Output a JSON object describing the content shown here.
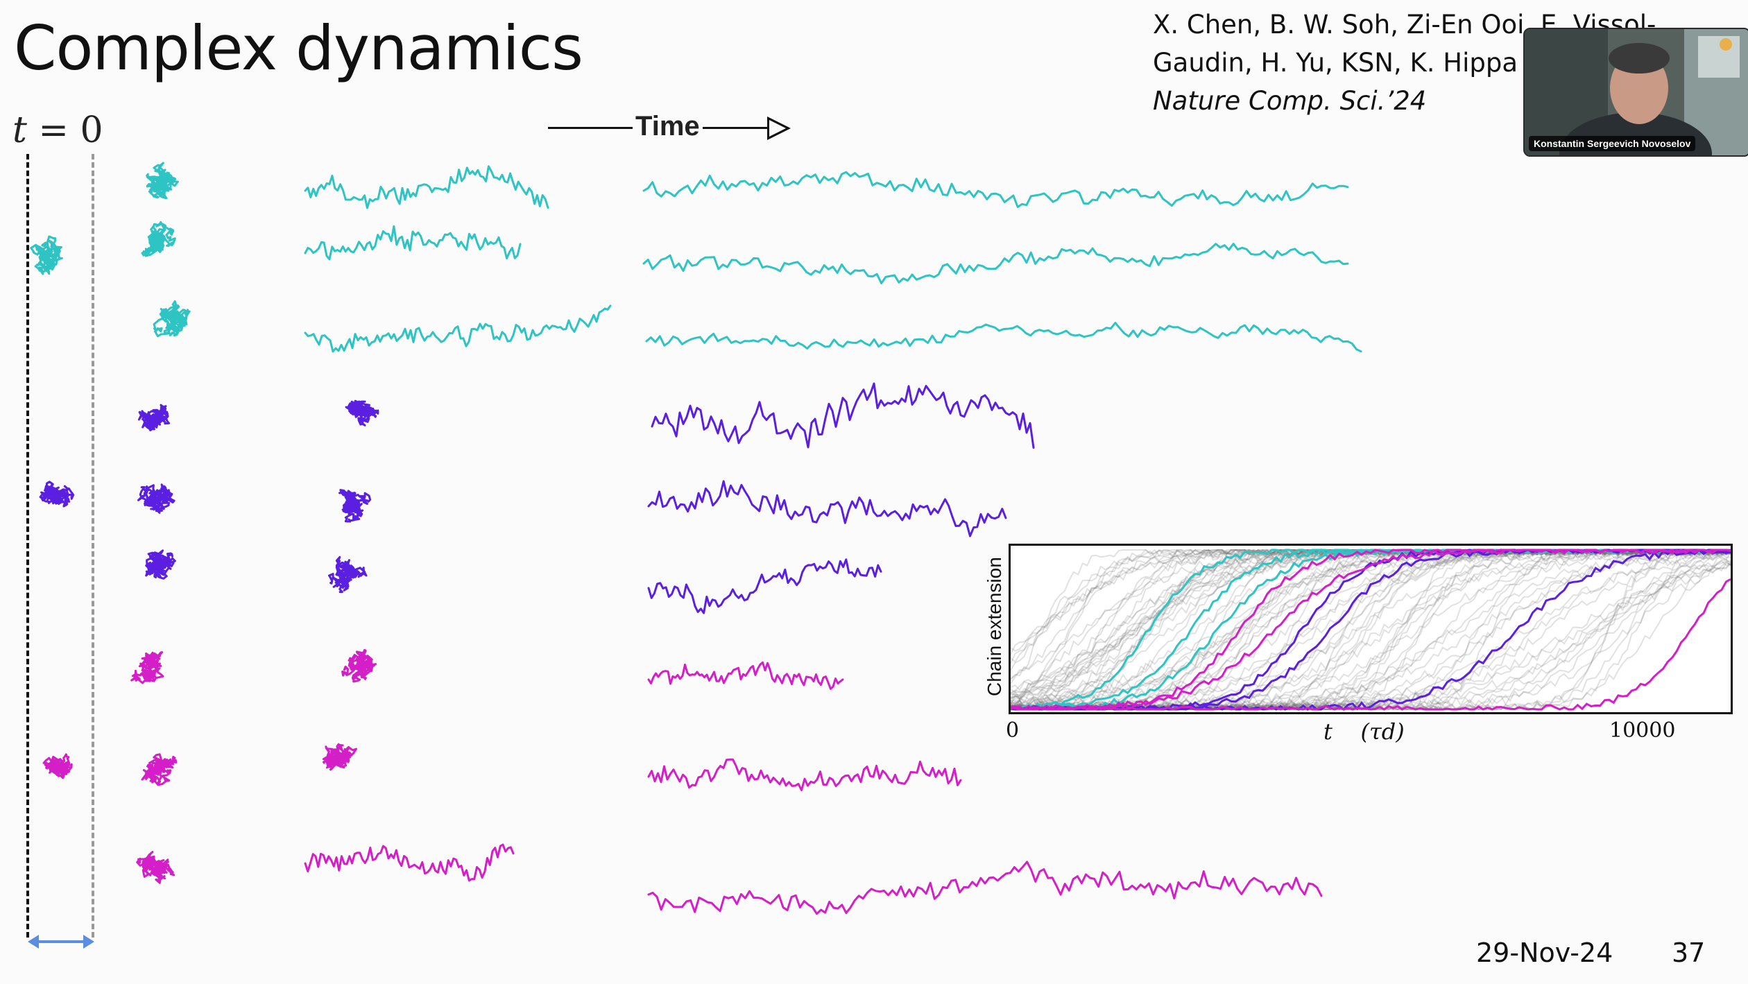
{
  "slide": {
    "title": "Complex dynamics",
    "reference": {
      "line1": "X. Chen, B. W. Soh, Zi-En Ooi, E. Vissol-",
      "line2": "Gaudin, H. Yu, KSN, K. Hippa",
      "journal": "Nature Comp. Sci.’24"
    },
    "t0_label": "t",
    "t0_eq": " = 0",
    "time_label": "Time",
    "footer": {
      "date": "29-Nov-24",
      "page": "37"
    }
  },
  "inset": {
    "ylabel": "Chain extension",
    "xlabel_var": "t",
    "xlabel_unit": "(τd)",
    "x_min_label": "0",
    "x_max_label": "10000"
  },
  "video": {
    "participant_name": "Konstantin Sergeevich Novoselov"
  },
  "colors": {
    "cyan": "#2ec4c4",
    "violet": "#5a1fe0",
    "magenta": "#d41fc8",
    "gray": "#9a9a9a"
  }
}
